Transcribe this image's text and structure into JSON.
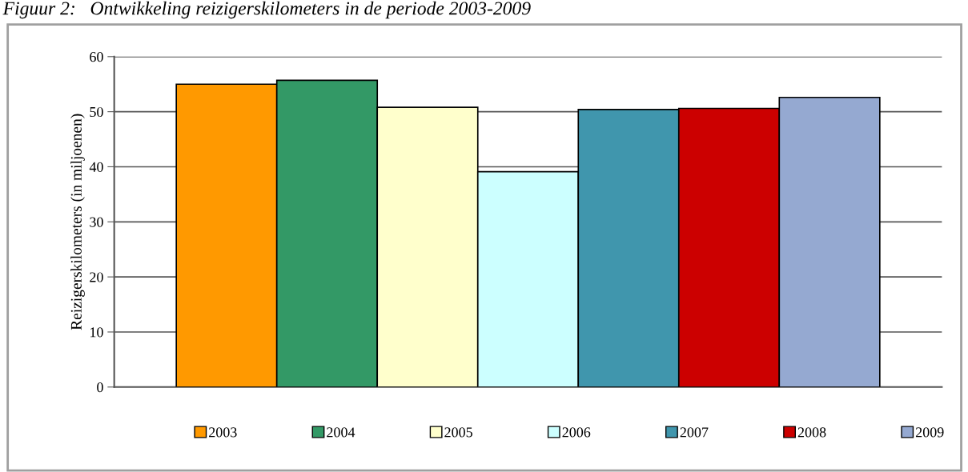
{
  "chart_data": {
    "type": "bar",
    "title": "Figuur 2:   Ontwikkeling reizigerskilometers in de periode 2003-2009",
    "ylabel": "Reizigerskilometers (in miljoenen)",
    "categories": [
      null
    ],
    "series": [
      {
        "name": "2003",
        "color": "#ff9900",
        "values": [
          55.0
        ]
      },
      {
        "name": "2004",
        "color": "#339966",
        "values": [
          55.7
        ]
      },
      {
        "name": "2005",
        "color": "#ffffcc",
        "values": [
          50.8
        ]
      },
      {
        "name": "2006",
        "color": "#ccffff",
        "values": [
          39.1
        ]
      },
      {
        "name": "2007",
        "color": "#4096ad",
        "values": [
          50.4
        ]
      },
      {
        "name": "2008",
        "color": "#cc0000",
        "values": [
          50.6
        ]
      },
      {
        "name": "2009",
        "color": "#95a9d1",
        "values": [
          52.6
        ]
      }
    ],
    "ylim": [
      0,
      60
    ],
    "yticks": [
      0,
      10,
      20,
      30,
      40,
      50,
      60
    ],
    "grid": "y",
    "legend": "bottom"
  }
}
